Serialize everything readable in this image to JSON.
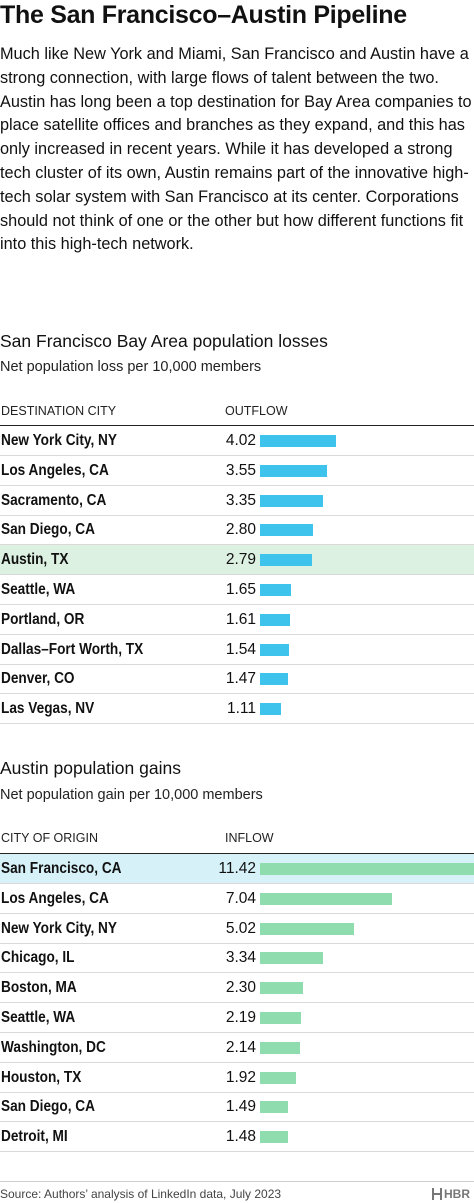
{
  "title": "The San Francisco–Austin Pipeline",
  "intro": "Much like New York and Miami, San Francisco and Austin have a strong connection, with large flows of talent between the two. Austin has long been a top destination for Bay Area companies to place satellite offices and branches as they expand, and this has only increased in recent years. While it has developed a strong tech cluster of its own, Austin remains part of the innovative high-tech solar system with San Francisco at its center. Corporations should not think of one or the other but how different functions fit into this high-tech network.",
  "colors": {
    "outflow_bar": "#3dc3ec",
    "inflow_bar": "#8fdcaf",
    "highlight_green": "#ddf1e2",
    "highlight_blue": "#d7f1f8"
  },
  "chart_data": [
    {
      "type": "bar",
      "orientation": "horizontal",
      "title": "San Francisco Bay Area population losses",
      "subtitle": "Net population loss per 10,000 members",
      "category_header": "DESTINATION CITY",
      "value_header": "OUTFLOW",
      "highlight": "Austin, TX",
      "categories": [
        "New York City, NY",
        "Los Angeles, CA",
        "Sacramento, CA",
        "San Diego, CA",
        "Austin, TX",
        "Seattle, WA",
        "Portland, OR",
        "Dallas–Fort Worth, TX",
        "Denver, CO",
        "Las Vegas, NV"
      ],
      "values": [
        4.02,
        3.55,
        3.35,
        2.8,
        2.79,
        1.65,
        1.61,
        1.54,
        1.47,
        1.11
      ],
      "labels": [
        "4.02",
        "3.55",
        "3.35",
        "2.80",
        "2.79",
        "1.65",
        "1.61",
        "1.54",
        "1.47",
        "1.11"
      ]
    },
    {
      "type": "bar",
      "orientation": "horizontal",
      "title": "Austin population gains",
      "subtitle": "Net population gain per 10,000 members",
      "category_header": "CITY OF ORIGIN",
      "value_header": "INFLOW",
      "highlight": "San Francisco, CA",
      "categories": [
        "San Francisco, CA",
        "Los Angeles, CA",
        "New York City, NY",
        "Chicago, IL",
        "Boston, MA",
        "Seattle, WA",
        "Washington, DC",
        "Houston, TX",
        "San Diego, CA",
        "Detroit, MI"
      ],
      "values": [
        11.42,
        7.04,
        5.02,
        3.34,
        2.3,
        2.19,
        2.14,
        1.92,
        1.49,
        1.48
      ],
      "labels": [
        "11.42",
        "7.04",
        "5.02",
        "3.34",
        "2.30",
        "2.19",
        "2.14",
        "1.92",
        "1.49",
        "1.48"
      ]
    }
  ],
  "source": "Source: Authors’ analysis of LinkedIn data, July 2023",
  "brand": "HBR"
}
